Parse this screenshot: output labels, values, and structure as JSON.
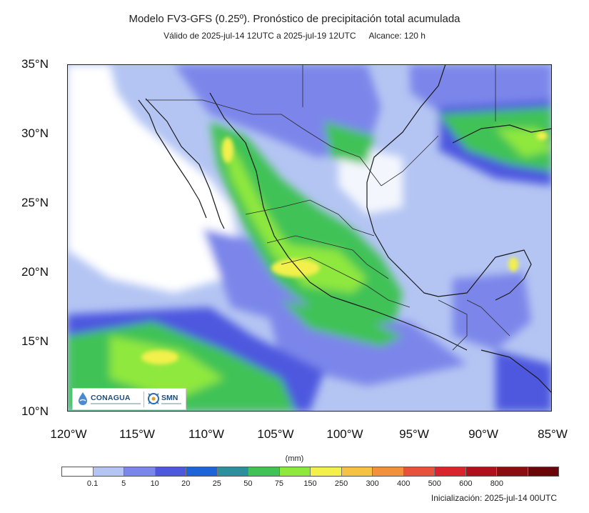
{
  "header": {
    "title": "Modelo FV3-GFS (0.25º). Pronóstico de precipitación total acumulada",
    "valid": "Válido de 2025-jul-14 12UTC a 2025-jul-19 12UTC",
    "range": "Alcance: 120 h"
  },
  "axes": {
    "lat_labels": [
      "35°N",
      "30°N",
      "25°N",
      "20°N",
      "15°N",
      "10°N"
    ],
    "lon_labels": [
      "120°W",
      "115°W",
      "110°W",
      "105°W",
      "100°W",
      "95°W",
      "90°W",
      "85°W"
    ],
    "lat_range": [
      10,
      35
    ],
    "lon_range": [
      -120,
      -85
    ]
  },
  "logos": {
    "conagua": "CONAGUA",
    "smn": "SMN"
  },
  "legend": {
    "units": "(mm)",
    "thresholds": [
      "0.1",
      "5",
      "10",
      "20",
      "25",
      "50",
      "75",
      "150",
      "250",
      "300",
      "400",
      "500",
      "600",
      "800"
    ],
    "colors": [
      "#ffffff",
      "#b4c5f3",
      "#7b86ea",
      "#4e58df",
      "#1d64d9",
      "#2c8f9e",
      "#41c257",
      "#8fe83c",
      "#f3f04c",
      "#f6c244",
      "#f2913c",
      "#e8513a",
      "#d8242a",
      "#b0101c",
      "#8a0e10",
      "#6a0608"
    ]
  },
  "footer": {
    "init": "Inicialización: 2025-jul-14 00UTC"
  },
  "colors": {
    "ocean_background": "#b4c5f3",
    "coast": "#1a1a1a",
    "border": "#2a2a2a"
  }
}
